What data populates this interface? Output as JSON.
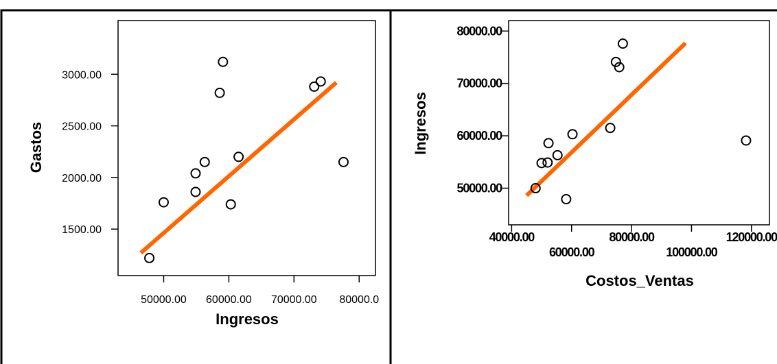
{
  "colors": {
    "fit_line": "#ff6600",
    "marker": "#000000",
    "frame": "#000000",
    "background": "#ffffff"
  },
  "chart_data": [
    {
      "type": "scatter",
      "xlabel": "Ingresos",
      "ylabel": "Gastos",
      "xlim": [
        43000,
        82500
      ],
      "ylim": [
        1050,
        3520
      ],
      "x_ticks": [
        50000,
        60000,
        70000,
        80000
      ],
      "x_tick_labels": [
        "50000.00",
        "60000.00",
        "70000.00",
        "80000.0"
      ],
      "y_ticks": [
        1500,
        2000,
        2500,
        3000
      ],
      "y_tick_labels": [
        "1500.00",
        "2000.00",
        "2500.00",
        "3000.00"
      ],
      "grid": false,
      "points": [
        {
          "x": 47800,
          "y": 1220
        },
        {
          "x": 50000,
          "y": 1760
        },
        {
          "x": 54900,
          "y": 1860
        },
        {
          "x": 54900,
          "y": 2040
        },
        {
          "x": 56300,
          "y": 2150
        },
        {
          "x": 58600,
          "y": 2820
        },
        {
          "x": 59100,
          "y": 3120
        },
        {
          "x": 60300,
          "y": 1740
        },
        {
          "x": 61500,
          "y": 2200
        },
        {
          "x": 73100,
          "y": 2880
        },
        {
          "x": 74100,
          "y": 2930
        },
        {
          "x": 77600,
          "y": 2150
        }
      ],
      "fit_line": {
        "x": [
          46500,
          76500
        ],
        "y": [
          1270,
          2920
        ]
      }
    },
    {
      "type": "scatter",
      "xlabel": "Costos_Ventas",
      "ylabel": "Ingresos",
      "xlim": [
        39000,
        126000
      ],
      "ylim": [
        43000,
        82000
      ],
      "x_ticks": [
        40000,
        60000,
        80000,
        100000,
        120000
      ],
      "x_tick_labels": [
        "40000.00",
        "60000.00",
        "80000.00",
        "100000.00",
        "120000.00"
      ],
      "y_ticks": [
        50000,
        60000,
        70000,
        80000
      ],
      "y_tick_labels": [
        "50000.00",
        "60000.00",
        "70000.00",
        "80000.00"
      ],
      "grid": false,
      "points": [
        {
          "x": 48000,
          "y": 50000
        },
        {
          "x": 50000,
          "y": 54800
        },
        {
          "x": 52000,
          "y": 54900
        },
        {
          "x": 52300,
          "y": 58600
        },
        {
          "x": 55300,
          "y": 56300
        },
        {
          "x": 58200,
          "y": 47900
        },
        {
          "x": 60300,
          "y": 60300
        },
        {
          "x": 72900,
          "y": 61500
        },
        {
          "x": 74800,
          "y": 74100
        },
        {
          "x": 75900,
          "y": 73100
        },
        {
          "x": 77100,
          "y": 77600
        },
        {
          "x": 118200,
          "y": 59100
        }
      ],
      "fit_line": {
        "x": [
          45000,
          98000
        ],
        "y": [
          48600,
          77700
        ]
      }
    }
  ]
}
